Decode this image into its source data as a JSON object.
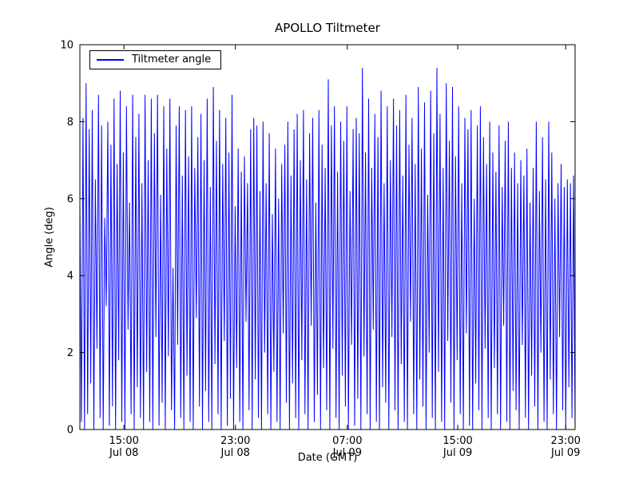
{
  "title": "APOLLO Tiltmeter",
  "axes": {
    "xlabel": "Date (GMT)",
    "ylabel": "Angle (deg)"
  },
  "legend": {
    "label": "Tiltmeter angle",
    "line_color": "#0000ff",
    "position": "upper left"
  },
  "chart_data": {
    "type": "line",
    "title": "APOLLO Tiltmeter",
    "xlabel": "Date (GMT)",
    "ylabel": "Angle (deg)",
    "ylim": [
      0,
      10
    ],
    "yticks": [
      0,
      2,
      4,
      6,
      8,
      10
    ],
    "xticks": [
      {
        "time": "15:00",
        "date": "Jul 08",
        "frac": 0.089
      },
      {
        "time": "23:00",
        "date": "Jul 08",
        "frac": 0.314
      },
      {
        "time": "07:00",
        "date": "Jul 09",
        "frac": 0.54
      },
      {
        "time": "15:00",
        "date": "Jul 09",
        "frac": 0.763
      },
      {
        "time": "23:00",
        "date": "Jul 09",
        "frac": 0.981
      }
    ],
    "grid": false,
    "legend_position": "upper left",
    "series": [
      {
        "name": "Tiltmeter angle",
        "color": "#0000ff",
        "values": [
          5.9,
          0.2,
          8.1,
          0.0,
          9.0,
          0.4,
          7.8,
          1.2,
          8.3,
          0.0,
          6.5,
          2.1,
          8.7,
          0.3,
          7.9,
          0.0,
          5.5,
          3.2,
          8.0,
          0.1,
          7.4,
          0.6,
          8.6,
          0.0,
          6.9,
          1.8,
          8.8,
          0.2,
          7.2,
          0.0,
          8.4,
          2.6,
          5.9,
          0.4,
          8.7,
          0.0,
          7.6,
          1.1,
          8.2,
          0.3,
          6.4,
          0.0,
          8.7,
          1.5,
          7.0,
          0.2,
          8.6,
          0.0,
          7.7,
          2.4,
          8.7,
          0.1,
          6.1,
          0.7,
          8.4,
          0.0,
          7.3,
          1.9,
          8.6,
          0.5,
          4.2,
          0.0,
          7.9,
          2.2,
          8.4,
          0.3,
          6.6,
          0.0,
          8.3,
          1.4,
          7.1,
          0.2,
          8.4,
          0.0,
          6.8,
          2.9,
          7.6,
          0.6,
          8.2,
          0.0,
          7.0,
          1.0,
          8.6,
          0.2,
          6.3,
          0.0,
          8.9,
          1.7,
          7.5,
          0.4,
          8.3,
          0.0,
          6.9,
          2.3,
          8.1,
          0.1,
          7.2,
          0.8,
          8.7,
          0.0,
          5.8,
          1.6,
          7.3,
          0.2,
          6.7,
          0.0,
          7.1,
          2.8,
          6.4,
          0.5,
          7.8,
          0.0,
          8.1,
          1.3,
          7.9,
          0.3,
          6.2,
          0.0,
          8.0,
          2.0,
          6.4,
          0.4,
          7.7,
          0.0,
          5.6,
          1.5,
          7.3,
          0.2,
          6.0,
          0.0,
          6.9,
          2.5,
          7.4,
          0.7,
          8.0,
          0.0,
          6.6,
          1.2,
          7.8,
          0.3,
          8.2,
          0.0,
          7.0,
          1.8,
          8.3,
          0.4,
          6.5,
          0.0,
          7.7,
          2.7,
          8.1,
          0.2,
          5.9,
          0.9,
          8.3,
          0.0,
          7.4,
          1.6,
          6.8,
          0.5,
          9.1,
          0.0,
          7.9,
          2.1,
          8.4,
          0.3,
          6.7,
          0.0,
          8.0,
          1.4,
          7.5,
          0.6,
          8.4,
          0.0,
          6.2,
          2.2,
          7.8,
          0.1,
          8.1,
          0.8,
          7.7,
          0.0,
          9.4,
          1.9,
          7.2,
          0.4,
          8.6,
          0.0,
          6.8,
          2.6,
          8.2,
          0.2,
          7.6,
          0.0,
          8.8,
          1.1,
          6.4,
          0.7,
          8.4,
          0.0,
          7.0,
          2.4,
          8.6,
          0.5,
          7.9,
          0.0,
          8.3,
          1.7,
          6.6,
          0.2,
          8.7,
          0.0,
          7.4,
          2.8,
          8.1,
          0.4,
          6.9,
          0.0,
          8.9,
          1.3,
          7.3,
          0.6,
          8.5,
          0.0,
          6.1,
          2.0,
          8.8,
          0.3,
          7.7,
          0.0,
          9.4,
          1.5,
          8.2,
          0.2,
          6.8,
          0.0,
          9.0,
          2.3,
          7.5,
          0.7,
          8.9,
          0.0,
          7.1,
          1.8,
          8.4,
          0.4,
          6.4,
          0.0,
          8.1,
          2.5,
          7.8,
          0.1,
          8.3,
          0.0,
          6.0,
          1.2,
          7.9,
          0.5,
          8.4,
          0.0,
          7.6,
          2.1,
          6.9,
          0.3,
          8.0,
          0.0,
          7.2,
          1.6,
          6.7,
          0.4,
          7.9,
          0.0,
          6.3,
          2.7,
          7.5,
          0.2,
          8.0,
          0.0,
          6.8,
          1.0,
          7.2,
          0.5,
          6.4,
          0.0,
          7.0,
          2.2,
          6.6,
          0.3,
          7.3,
          0.0,
          5.9,
          1.4,
          6.8,
          0.6,
          8.0,
          0.0,
          6.2,
          2.0,
          7.6,
          0.2,
          6.5,
          0.0,
          8.0,
          1.3,
          7.2,
          0.4,
          6.0,
          0.0,
          6.4,
          2.4,
          6.9,
          0.5,
          6.3,
          0.0,
          6.5,
          1.1,
          6.4,
          0.3,
          6.6,
          0.0
        ]
      }
    ]
  }
}
